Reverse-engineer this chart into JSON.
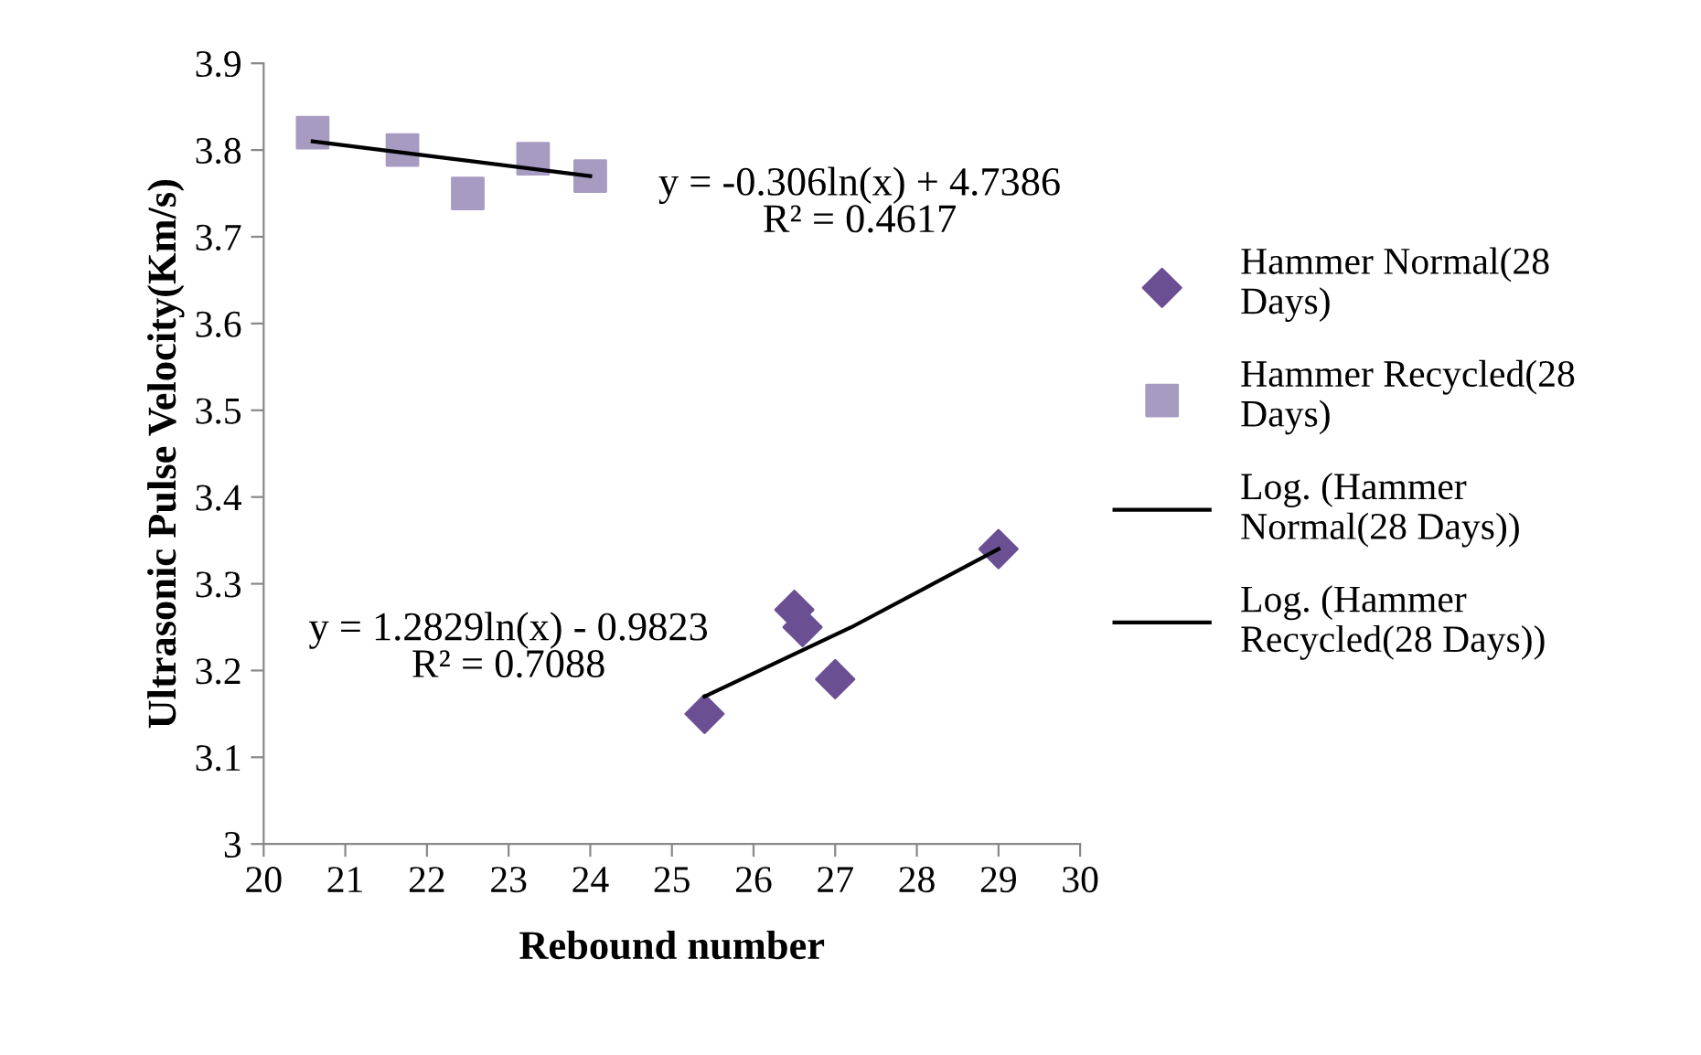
{
  "chart_data": {
    "type": "scatter",
    "xlabel": "Rebound number",
    "ylabel": "Ultrasonic Pulse Velocity(Km/s)",
    "xlim": [
      20,
      30
    ],
    "xticks": [
      20,
      21,
      22,
      23,
      24,
      25,
      26,
      27,
      28,
      29,
      30
    ],
    "ylim": [
      3,
      3.9
    ],
    "yticks": [
      3,
      {
        "value": 3.1,
        "label": "3.1"
      },
      {
        "value": 3.2,
        "label": "3.2"
      },
      {
        "value": 3.3,
        "label": "3.3"
      },
      {
        "value": 3.4,
        "label": "3.4"
      },
      {
        "value": 3.5,
        "label": "3.5"
      },
      {
        "value": 3.6,
        "label": "3.6"
      },
      {
        "value": 3.7,
        "label": "3.7"
      },
      {
        "value": 3.8,
        "label": "3.8"
      },
      {
        "value": 3.9,
        "label": "3.9"
      }
    ],
    "grid": false,
    "legend": "right",
    "annotations": [
      "y = -0.306ln(x) + 4.7386\nR² = 0.4617",
      "y = 1.2829ln(x) - 0.9823\nR² = 0.7088"
    ],
    "series": [
      {
        "name": "Hammer Normal(28 Days)",
        "marker": "diamond",
        "color": "#6a4f93",
        "x": [
          25.4,
          26.5,
          26.6,
          27,
          29
        ],
        "values": [
          3.15,
          3.27,
          3.25,
          3.19,
          3.34
        ]
      },
      {
        "name": "Hammer Recycled(28 Days)",
        "marker": "square",
        "color": "#a89bc2",
        "x": [
          20.6,
          21.7,
          22.5,
          23.3,
          24
        ],
        "values": [
          3.82,
          3.8,
          3.75,
          3.79,
          3.77
        ]
      },
      {
        "name": "Log. (Hammer Normal(28 Days))",
        "type": "line",
        "marker": "none",
        "color": "#000000",
        "x": [
          25.4,
          27.2,
          29
        ],
        "values": [
          3.17,
          3.25,
          3.34
        ]
      },
      {
        "name": "Log. (Hammer Recycled(28 Days))",
        "type": "line",
        "marker": "none",
        "color": "#000000",
        "x": [
          20.6,
          22.3,
          24
        ],
        "values": [
          3.81,
          3.79,
          3.77
        ]
      }
    ]
  }
}
